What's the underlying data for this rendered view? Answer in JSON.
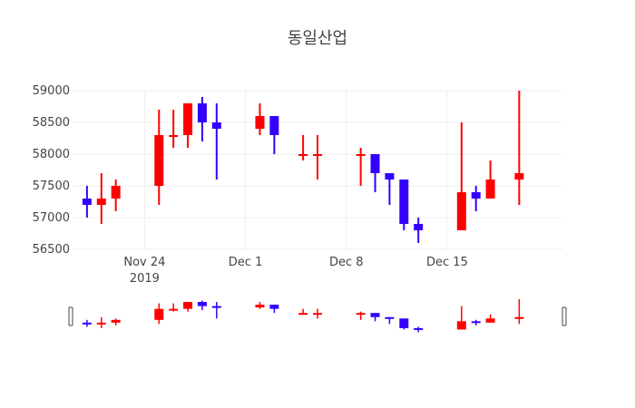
{
  "chart_data": {
    "type": "candlestick",
    "title": "동일산업",
    "xlabel": "",
    "ylabel": "",
    "ylim": [
      56500,
      59000
    ],
    "yticks": [
      56500,
      57000,
      57500,
      58000,
      58500,
      59000
    ],
    "xticks": [
      {
        "date": "2019-11-24",
        "label": "Nov 24",
        "sublabel": "2019"
      },
      {
        "date": "2019-12-01",
        "label": "Dec 1",
        "sublabel": ""
      },
      {
        "date": "2019-12-08",
        "label": "Dec 8",
        "sublabel": ""
      },
      {
        "date": "2019-12-15",
        "label": "Dec 15",
        "sublabel": ""
      }
    ],
    "x_range": [
      "2019-11-19",
      "2019-12-23"
    ],
    "increasing_color": "#ff0000",
    "decreasing_color": "#3300ff",
    "grid": true,
    "rangeslider": true,
    "candles": [
      {
        "date": "2019-11-20",
        "open": 57300,
        "high": 57500,
        "low": 57000,
        "close": 57200
      },
      {
        "date": "2019-11-21",
        "open": 57200,
        "high": 57700,
        "low": 56900,
        "close": 57300
      },
      {
        "date": "2019-11-22",
        "open": 57300,
        "high": 57600,
        "low": 57100,
        "close": 57500
      },
      {
        "date": "2019-11-25",
        "open": 57500,
        "high": 58700,
        "low": 57200,
        "close": 58300
      },
      {
        "date": "2019-11-26",
        "open": 58300,
        "high": 58700,
        "low": 58100,
        "close": 58300
      },
      {
        "date": "2019-11-27",
        "open": 58300,
        "high": 58800,
        "low": 58100,
        "close": 58800
      },
      {
        "date": "2019-11-28",
        "open": 58800,
        "high": 58900,
        "low": 58200,
        "close": 58500
      },
      {
        "date": "2019-11-29",
        "open": 58500,
        "high": 58800,
        "low": 57600,
        "close": 58400
      },
      {
        "date": "2019-12-02",
        "open": 58400,
        "high": 58800,
        "low": 58300,
        "close": 58600
      },
      {
        "date": "2019-12-03",
        "open": 58600,
        "high": 58600,
        "low": 58000,
        "close": 58300
      },
      {
        "date": "2019-12-05",
        "open": 58000,
        "high": 58300,
        "low": 57900,
        "close": 58000
      },
      {
        "date": "2019-12-06",
        "open": 58000,
        "high": 58300,
        "low": 57600,
        "close": 58000
      },
      {
        "date": "2019-12-09",
        "open": 58000,
        "high": 58100,
        "low": 57500,
        "close": 58000
      },
      {
        "date": "2019-12-10",
        "open": 58000,
        "high": 58000,
        "low": 57400,
        "close": 57700
      },
      {
        "date": "2019-12-11",
        "open": 57700,
        "high": 57700,
        "low": 57200,
        "close": 57600
      },
      {
        "date": "2019-12-12",
        "open": 57600,
        "high": 57600,
        "low": 56800,
        "close": 56900
      },
      {
        "date": "2019-12-13",
        "open": 56900,
        "high": 57000,
        "low": 56600,
        "close": 56800
      },
      {
        "date": "2019-12-16",
        "open": 56800,
        "high": 58500,
        "low": 56800,
        "close": 57400
      },
      {
        "date": "2019-12-17",
        "open": 57400,
        "high": 57500,
        "low": 57100,
        "close": 57300
      },
      {
        "date": "2019-12-18",
        "open": 57300,
        "high": 57900,
        "low": 57300,
        "close": 57600
      },
      {
        "date": "2019-12-20",
        "open": 57600,
        "high": 59000,
        "low": 57200,
        "close": 57700
      }
    ]
  }
}
